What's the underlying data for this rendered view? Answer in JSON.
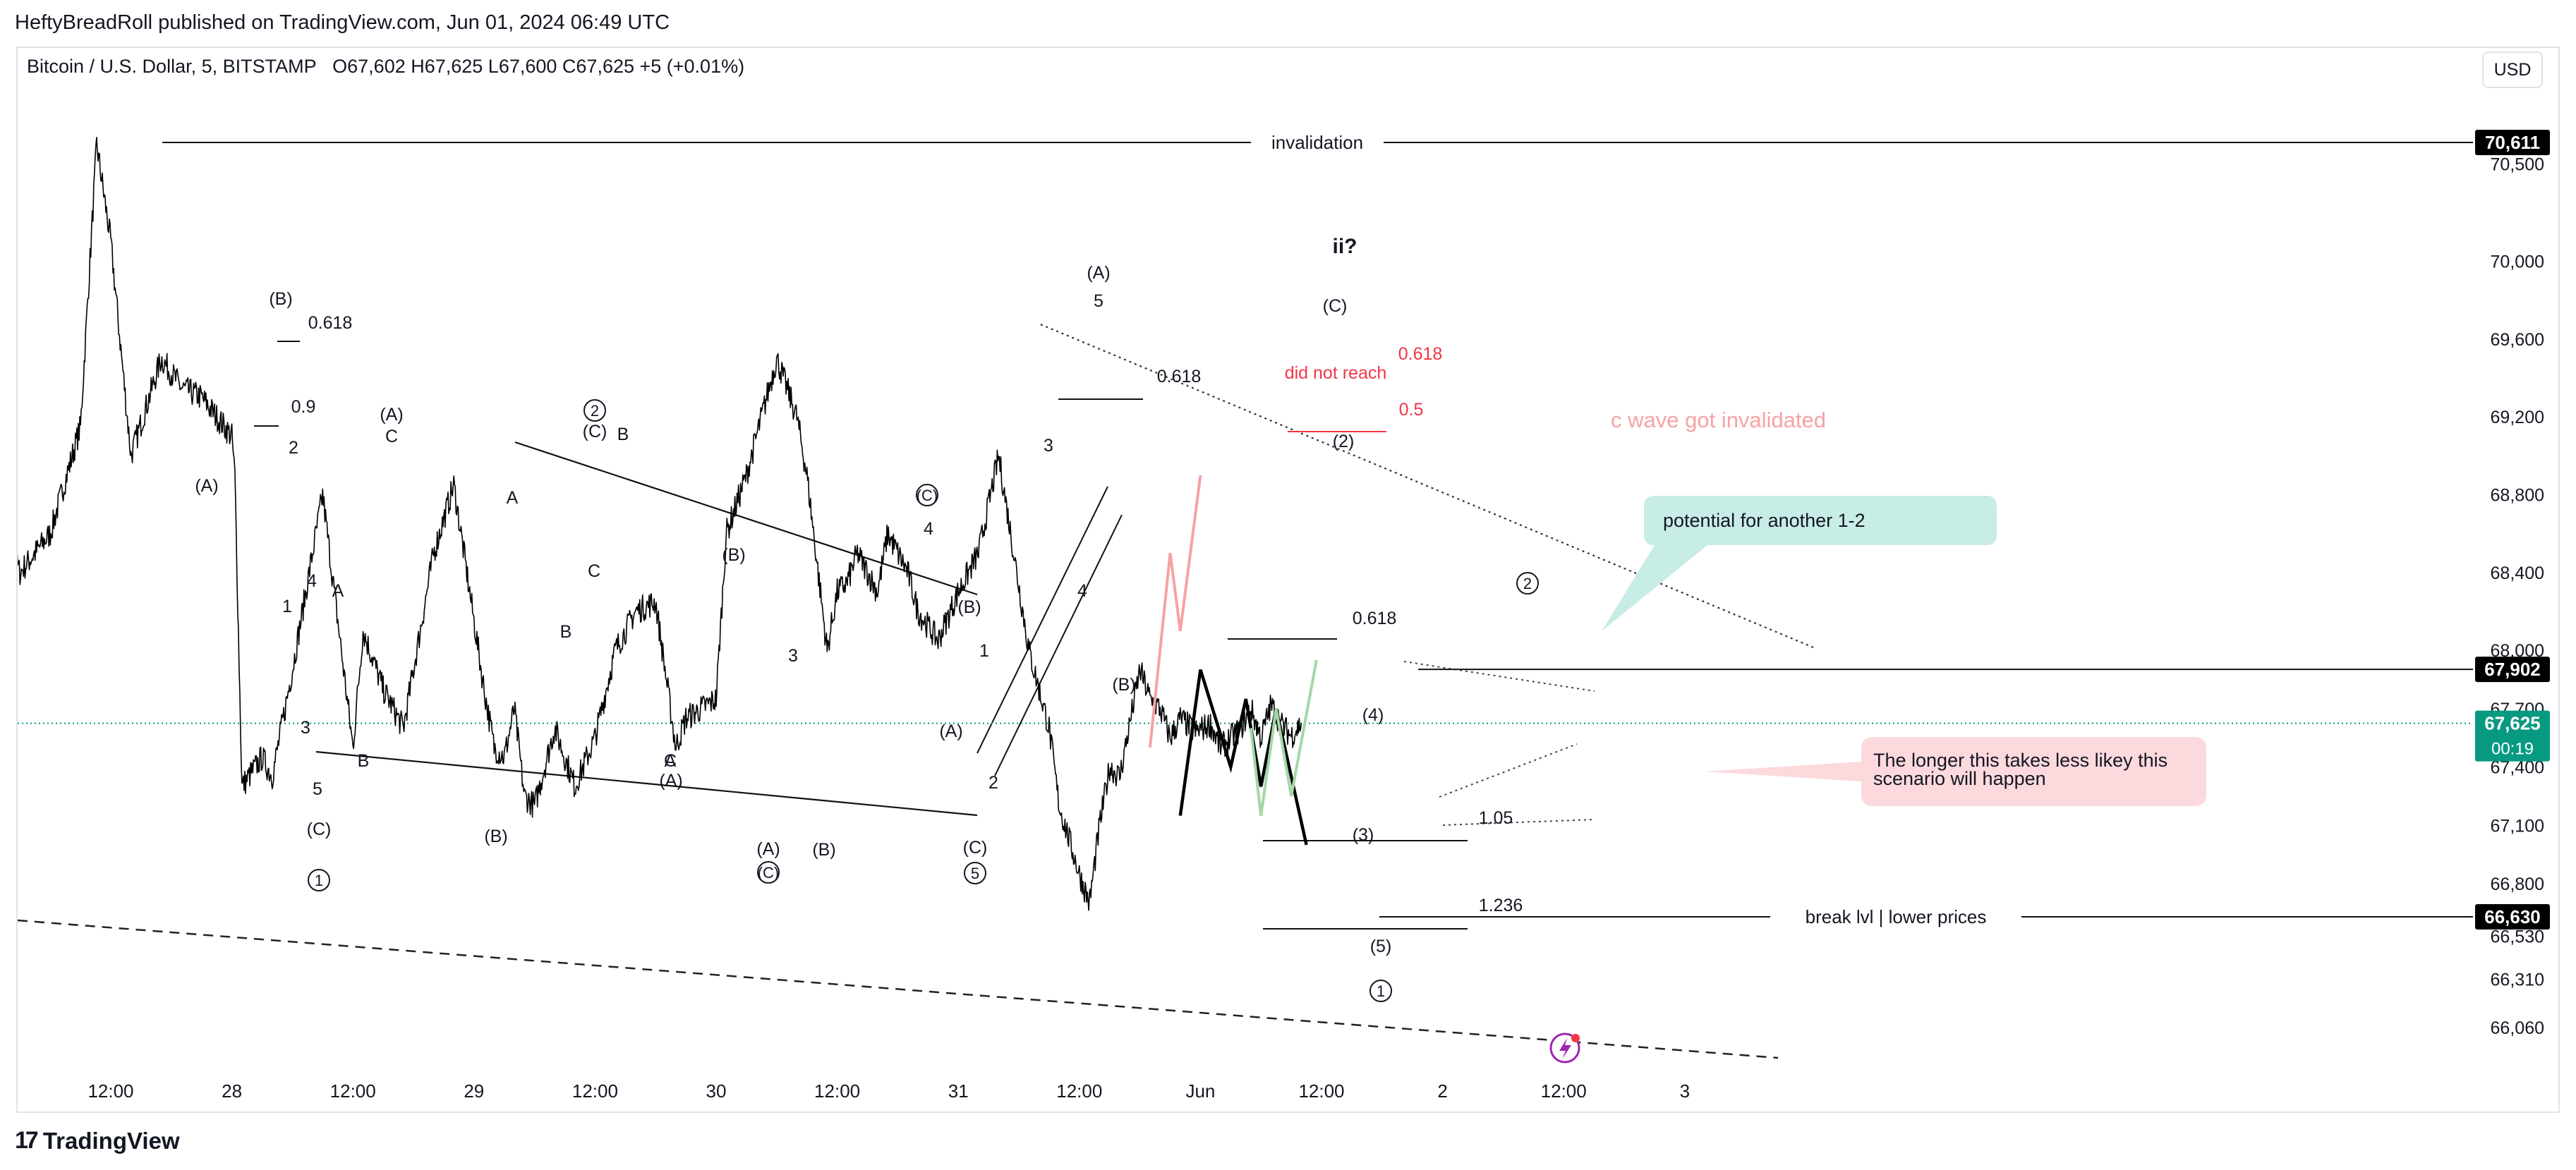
{
  "header": {
    "publisher": "HeftyBreadRoll published on TradingView.com, Jun 01, 2024 06:49 UTC"
  },
  "legend": {
    "symbol": "Bitcoin / U.S. Dollar, 5, BITSTAMP",
    "ohlc": "O67,602  H67,625  L67,600  C67,625  +5 (+0.01%)"
  },
  "currency_button": "USD",
  "footer": {
    "logo_text": "TradingView"
  },
  "colors": {
    "price": "#000000",
    "grid": "#e0e3eb",
    "current_price": "#089981",
    "red_text": "#f23645",
    "salmon_path": "#f7a2a2",
    "green_path": "#a5d6a7",
    "teal_callout": "#c8ece6",
    "pink_callout": "#fcd9dd"
  },
  "chart_data": {
    "type": "line",
    "title": "Bitcoin / U.S. Dollar, 5, BITSTAMP",
    "interval": "5",
    "ylim": [
      65900,
      70800
    ],
    "y_ticks": [
      70500,
      70000,
      69600,
      69200,
      68800,
      68400,
      68000,
      67700,
      67400,
      67100,
      66800,
      66530,
      66310,
      66060
    ],
    "y_tick_labels": [
      "70,500",
      "70,000",
      "69,600",
      "69,200",
      "68,800",
      "68,400",
      "68,000",
      "67,700",
      "67,400",
      "67,100",
      "66,800",
      "66,530",
      "66,310",
      "66,060"
    ],
    "x_ticks": [
      "12:00",
      "28",
      "12:00",
      "29",
      "12:00",
      "30",
      "12:00",
      "31",
      "12:00",
      "Jun",
      "12:00",
      "2",
      "12:00",
      "3"
    ],
    "x_tick_hours": [
      12,
      24,
      36,
      48,
      60,
      72,
      84,
      96,
      108,
      120,
      132,
      144,
      156,
      168
    ],
    "x_unit": "hours since May 27 00:00 (approx.)",
    "series": [
      {
        "name": "BTCUSD",
        "x": [
          0,
          3,
          6,
          9,
          10.6,
          12,
          14,
          17,
          19,
          21,
          24,
          24.3,
          25,
          27,
          28,
          30,
          33,
          36,
          37,
          39,
          41,
          43,
          44,
          46,
          47,
          49,
          50,
          51,
          52,
          53,
          54,
          56,
          58,
          60,
          62,
          64,
          66,
          68,
          69,
          72,
          73,
          75,
          78,
          80,
          81,
          83,
          84,
          85,
          86,
          88,
          89,
          91,
          92,
          94,
          96,
          98,
          100,
          103,
          105,
          106,
          108,
          109,
          110,
          111,
          112,
          114,
          115,
          116,
          117,
          118,
          119.5,
          121,
          122,
          124,
          125,
          126,
          127,
          128,
          129,
          130
        ],
        "y": [
          68830,
          68400,
          68600,
          69150,
          70600,
          70100,
          69000,
          69500,
          69350,
          69300,
          69100,
          68900,
          67300,
          67450,
          67350,
          67900,
          68800,
          67500,
          68100,
          67800,
          67600,
          68200,
          68500,
          68850,
          68500,
          67800,
          67500,
          67450,
          67700,
          67250,
          67200,
          67600,
          67300,
          67550,
          68000,
          68200,
          68250,
          67500,
          67650,
          67750,
          68600,
          68900,
          69500,
          69200,
          68900,
          68000,
          68300,
          68350,
          68500,
          68300,
          68600,
          68400,
          68200,
          68050,
          68300,
          68500,
          69000,
          68000,
          67600,
          67200,
          66850,
          66700,
          67100,
          67400,
          67350,
          67900,
          67750,
          67700,
          67550,
          67650,
          67580,
          67620,
          67500,
          67600,
          67700,
          67550,
          67720,
          67620,
          67560,
          67625
        ]
      }
    ],
    "price_labels": [
      {
        "value": 70611,
        "text": "70,611",
        "style": "black"
      },
      {
        "value": 67902,
        "text": "67,902",
        "style": "black"
      },
      {
        "value": 67625,
        "text": "67,625",
        "sub": "00:19",
        "style": "current"
      },
      {
        "value": 66630,
        "text": "66,630",
        "style": "black"
      }
    ],
    "horizontal_lines": [
      {
        "value": 70611,
        "label": "invalidation"
      },
      {
        "value": 67902,
        "label": ""
      },
      {
        "value": 66630,
        "label": "break lvl | lower prices"
      }
    ],
    "wave_labels": [
      "(A)",
      "(B)",
      "0.618",
      "0.9",
      "2",
      "1",
      "4",
      "A",
      "3",
      "5",
      "B",
      "(C)",
      "1",
      "(A)",
      "C",
      "(B)",
      "A",
      "B",
      "2",
      "(C)",
      "B",
      "C",
      "A",
      "(B)",
      "C",
      "(A)",
      "(A)",
      "(C)",
      "3",
      "(B)",
      "4",
      "(C)",
      "(B)",
      "1",
      "(A)",
      "2",
      "(C)",
      "5",
      "(A)",
      "5",
      "3",
      "4",
      "0.618",
      "(B)",
      "ii?",
      "(C)",
      "did not reach",
      "0.618",
      "0.5",
      "(2)",
      "0.618",
      "(4)",
      "(3)",
      "(5)",
      "1",
      "1.05",
      "1.236",
      "2",
      "c wave got invalidated"
    ],
    "annotations": [
      {
        "text": "potential for another 1-2",
        "style": "teal-callout"
      },
      {
        "text": "The longer this takes less likey this scenario will happen",
        "style": "pink-callout"
      }
    ],
    "projection_paths": [
      {
        "name": "c-wave-path",
        "color": "salmon",
        "points": [
          [
            115,
            67500
          ],
          [
            117,
            68500
          ],
          [
            118,
            68100
          ],
          [
            120,
            68900
          ]
        ]
      },
      {
        "name": "black-path",
        "color": "black",
        "points": [
          [
            118,
            67150
          ],
          [
            120,
            67900
          ],
          [
            123,
            67400
          ],
          [
            124.5,
            67750
          ],
          [
            126,
            67300
          ],
          [
            127.5,
            67700
          ],
          [
            130.5,
            67000
          ]
        ]
      },
      {
        "name": "green-path",
        "color": "green",
        "points": [
          [
            125,
            67600
          ],
          [
            126,
            67150
          ],
          [
            127.5,
            67700
          ],
          [
            129,
            67250
          ],
          [
            131.5,
            67950
          ]
        ]
      }
    ]
  }
}
